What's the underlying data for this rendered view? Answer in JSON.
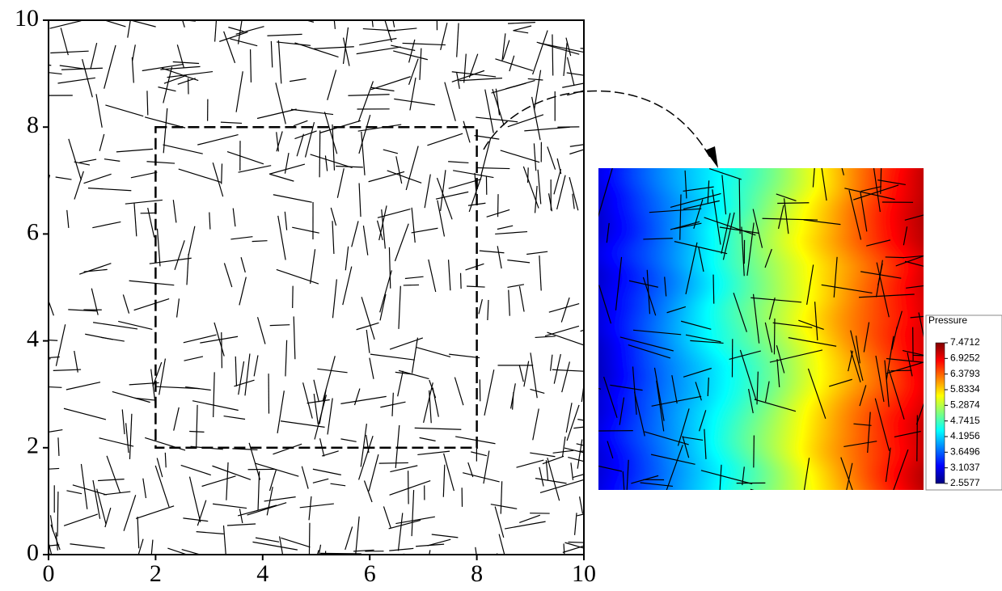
{
  "chart_data": {
    "type": "fracture-map",
    "xlim": [
      0,
      10
    ],
    "ylim": [
      0,
      10
    ],
    "xticks": [
      0,
      2,
      4,
      6,
      8,
      10
    ],
    "yticks": [
      0,
      2,
      4,
      6,
      8,
      10
    ],
    "subdomain": {
      "xlim": [
        2,
        8
      ],
      "ylim": [
        2,
        8
      ]
    },
    "colorbar": {
      "title": "Pressure",
      "lim": [
        2.5577,
        7.4712
      ],
      "ticks": [
        7.4712,
        6.9252,
        6.3793,
        5.8334,
        5.2874,
        4.7415,
        4.1956,
        3.6496,
        3.1037,
        2.5577
      ],
      "colors": [
        "#00007f",
        "#0000ff",
        "#007fff",
        "#00ffff",
        "#7fff7f",
        "#ffff00",
        "#ff7f00",
        "#ff0000",
        "#7f0000"
      ]
    }
  }
}
